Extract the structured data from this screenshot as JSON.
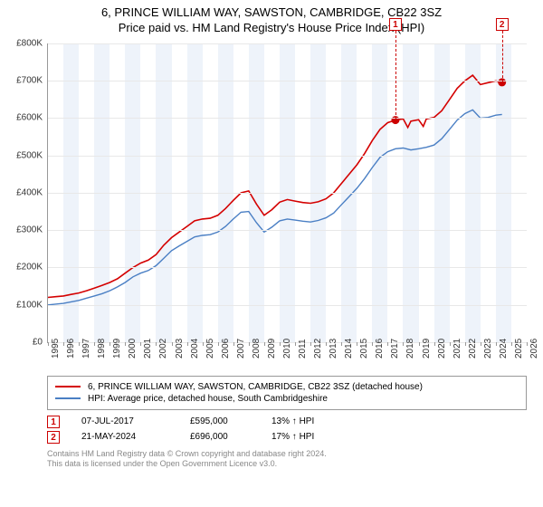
{
  "title": {
    "line1": "6, PRINCE WILLIAM WAY, SAWSTON, CAMBRIDGE, CB22 3SZ",
    "line2": "Price paid vs. HM Land Registry's House Price Index (HPI)"
  },
  "chart": {
    "type": "line",
    "background_color": "#ffffff",
    "grid_color": "#e8e8e8",
    "axis_color": "#999999",
    "band_color": "#eef3fa",
    "y": {
      "min": 0,
      "max": 800000,
      "step": 100000,
      "prefix": "£",
      "suffix_k": "K",
      "fontsize": 10
    },
    "x": {
      "years": [
        1995,
        1996,
        1997,
        1998,
        1999,
        2000,
        2001,
        2002,
        2003,
        2004,
        2005,
        2006,
        2007,
        2008,
        2009,
        2010,
        2011,
        2012,
        2013,
        2014,
        2015,
        2016,
        2017,
        2018,
        2019,
        2020,
        2021,
        2022,
        2023,
        2024,
        2025,
        2026
      ],
      "fontsize": 10
    },
    "series": {
      "price_paid": {
        "color": "#d40000",
        "width": 1.6,
        "label": "6, PRINCE WILLIAM WAY, SAWSTON, CAMBRIDGE, CB22 3SZ (detached house)",
        "points": [
          [
            1995.0,
            120000
          ],
          [
            1995.5,
            122000
          ],
          [
            1996.0,
            124000
          ],
          [
            1996.5,
            128000
          ],
          [
            1997.0,
            132000
          ],
          [
            1997.5,
            138000
          ],
          [
            1998.0,
            145000
          ],
          [
            1998.5,
            152000
          ],
          [
            1999.0,
            160000
          ],
          [
            1999.5,
            170000
          ],
          [
            2000.0,
            185000
          ],
          [
            2000.5,
            200000
          ],
          [
            2001.0,
            212000
          ],
          [
            2001.5,
            220000
          ],
          [
            2002.0,
            235000
          ],
          [
            2002.5,
            260000
          ],
          [
            2003.0,
            280000
          ],
          [
            2003.5,
            295000
          ],
          [
            2004.0,
            310000
          ],
          [
            2004.5,
            325000
          ],
          [
            2005.0,
            330000
          ],
          [
            2005.5,
            332000
          ],
          [
            2006.0,
            340000
          ],
          [
            2006.5,
            358000
          ],
          [
            2007.0,
            380000
          ],
          [
            2007.5,
            400000
          ],
          [
            2008.0,
            405000
          ],
          [
            2008.5,
            370000
          ],
          [
            2009.0,
            340000
          ],
          [
            2009.5,
            355000
          ],
          [
            2010.0,
            375000
          ],
          [
            2010.5,
            382000
          ],
          [
            2011.0,
            378000
          ],
          [
            2011.5,
            374000
          ],
          [
            2012.0,
            372000
          ],
          [
            2012.5,
            376000
          ],
          [
            2013.0,
            384000
          ],
          [
            2013.5,
            400000
          ],
          [
            2014.0,
            425000
          ],
          [
            2014.5,
            450000
          ],
          [
            2015.0,
            475000
          ],
          [
            2015.5,
            505000
          ],
          [
            2016.0,
            540000
          ],
          [
            2016.5,
            570000
          ],
          [
            2017.0,
            588000
          ],
          [
            2017.5,
            595000
          ],
          [
            2018.0,
            598000
          ],
          [
            2018.3,
            575000
          ],
          [
            2018.5,
            592000
          ],
          [
            2019.0,
            596000
          ],
          [
            2019.3,
            578000
          ],
          [
            2019.5,
            598000
          ],
          [
            2020.0,
            602000
          ],
          [
            2020.5,
            620000
          ],
          [
            2021.0,
            650000
          ],
          [
            2021.5,
            680000
          ],
          [
            2022.0,
            700000
          ],
          [
            2022.5,
            715000
          ],
          [
            2023.0,
            690000
          ],
          [
            2023.5,
            695000
          ],
          [
            2024.0,
            700000
          ],
          [
            2024.4,
            696000
          ]
        ]
      },
      "hpi": {
        "color": "#4a7fc4",
        "width": 1.4,
        "label": "HPI: Average price, detached house, South Cambridgeshire",
        "points": [
          [
            1995.0,
            100000
          ],
          [
            1995.5,
            102000
          ],
          [
            1996.0,
            104000
          ],
          [
            1996.5,
            108000
          ],
          [
            1997.0,
            112000
          ],
          [
            1997.5,
            118000
          ],
          [
            1998.0,
            124000
          ],
          [
            1998.5,
            130000
          ],
          [
            1999.0,
            138000
          ],
          [
            1999.5,
            148000
          ],
          [
            2000.0,
            160000
          ],
          [
            2000.5,
            175000
          ],
          [
            2001.0,
            185000
          ],
          [
            2001.5,
            192000
          ],
          [
            2002.0,
            205000
          ],
          [
            2002.5,
            225000
          ],
          [
            2003.0,
            245000
          ],
          [
            2003.5,
            258000
          ],
          [
            2004.0,
            270000
          ],
          [
            2004.5,
            282000
          ],
          [
            2005.0,
            286000
          ],
          [
            2005.5,
            288000
          ],
          [
            2006.0,
            295000
          ],
          [
            2006.5,
            310000
          ],
          [
            2007.0,
            330000
          ],
          [
            2007.5,
            348000
          ],
          [
            2008.0,
            350000
          ],
          [
            2008.5,
            320000
          ],
          [
            2009.0,
            295000
          ],
          [
            2009.5,
            308000
          ],
          [
            2010.0,
            325000
          ],
          [
            2010.5,
            330000
          ],
          [
            2011.0,
            327000
          ],
          [
            2011.5,
            324000
          ],
          [
            2012.0,
            322000
          ],
          [
            2012.5,
            326000
          ],
          [
            2013.0,
            333000
          ],
          [
            2013.5,
            346000
          ],
          [
            2014.0,
            368000
          ],
          [
            2014.5,
            390000
          ],
          [
            2015.0,
            412000
          ],
          [
            2015.5,
            438000
          ],
          [
            2016.0,
            468000
          ],
          [
            2016.5,
            495000
          ],
          [
            2017.0,
            510000
          ],
          [
            2017.5,
            518000
          ],
          [
            2018.0,
            520000
          ],
          [
            2018.5,
            515000
          ],
          [
            2019.0,
            518000
          ],
          [
            2019.5,
            522000
          ],
          [
            2020.0,
            528000
          ],
          [
            2020.5,
            545000
          ],
          [
            2021.0,
            570000
          ],
          [
            2021.5,
            595000
          ],
          [
            2022.0,
            612000
          ],
          [
            2022.5,
            622000
          ],
          [
            2023.0,
            600000
          ],
          [
            2023.5,
            602000
          ],
          [
            2024.0,
            608000
          ],
          [
            2024.4,
            610000
          ]
        ]
      }
    },
    "markers": [
      {
        "n": "1",
        "year": 2017.5,
        "value": 595000
      },
      {
        "n": "2",
        "year": 2024.4,
        "value": 696000
      }
    ]
  },
  "legend": {
    "rows": [
      {
        "color": "#d40000",
        "label_key": "chart.series.price_paid.label"
      },
      {
        "color": "#4a7fc4",
        "label_key": "chart.series.hpi.label"
      }
    ]
  },
  "sales": [
    {
      "n": "1",
      "date": "07-JUL-2017",
      "price": "£595,000",
      "pct": "13%",
      "arrow": "↑",
      "suffix": "HPI"
    },
    {
      "n": "2",
      "date": "21-MAY-2024",
      "price": "£696,000",
      "pct": "17%",
      "arrow": "↑",
      "suffix": "HPI"
    }
  ],
  "footnote": {
    "line1": "Contains HM Land Registry data © Crown copyright and database right 2024.",
    "line2": "This data is licensed under the Open Government Licence v3.0."
  }
}
